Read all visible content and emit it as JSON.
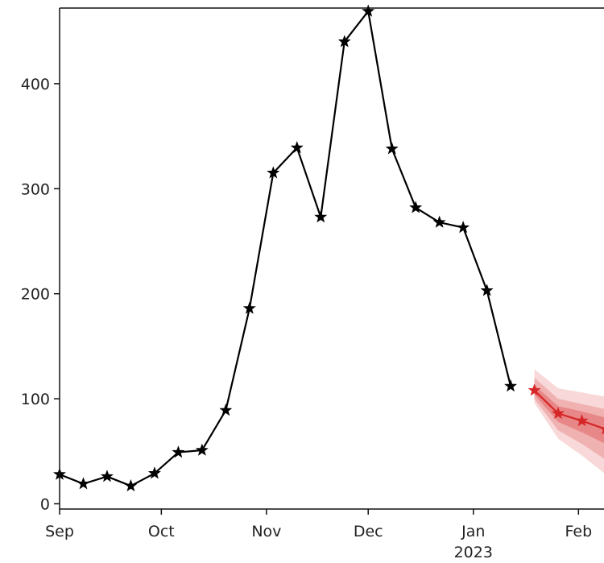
{
  "chart_data": {
    "type": "line",
    "title": "",
    "xlabel": "",
    "ylabel": "",
    "x_axis_type": "date",
    "xlim": [
      "2022-09-01",
      "2023-02-09"
    ],
    "ylim": [
      -5,
      472
    ],
    "grid": false,
    "legend": "none",
    "y_ticks": [
      0,
      100,
      200,
      300,
      400
    ],
    "x_ticks": [
      {
        "date": "2022-09-01",
        "label": "Sep"
      },
      {
        "date": "2022-10-01",
        "label": "Oct"
      },
      {
        "date": "2022-11-01",
        "label": "Nov"
      },
      {
        "date": "2022-12-01",
        "label": "Dec"
      },
      {
        "date": "2023-01-01",
        "label": "Jan",
        "sublabel": "2023"
      },
      {
        "date": "2023-02-01",
        "label": "Feb"
      }
    ],
    "series": [
      {
        "role": "observed",
        "color": "#000000",
        "marker": "star",
        "x": [
          "2022-09-01",
          "2022-09-08",
          "2022-09-15",
          "2022-09-22",
          "2022-09-29",
          "2022-10-06",
          "2022-10-13",
          "2022-10-20",
          "2022-10-27",
          "2022-11-03",
          "2022-11-10",
          "2022-11-17",
          "2022-11-24",
          "2022-12-01",
          "2022-12-08",
          "2022-12-15",
          "2022-12-22",
          "2022-12-29",
          "2023-01-05",
          "2023-01-12"
        ],
        "y": [
          28,
          19,
          26,
          17,
          29,
          49,
          51,
          89,
          186,
          315,
          339,
          273,
          440,
          469,
          338,
          282,
          268,
          263,
          203,
          112
        ]
      },
      {
        "role": "forecast",
        "color": "#d62728",
        "marker": "star",
        "x": [
          "2023-01-19",
          "2023-01-26",
          "2023-02-02",
          "2023-02-09"
        ],
        "y": [
          108,
          86,
          79,
          71
        ],
        "intervals": [
          {
            "lower": [
              96,
              62,
              46,
              28
            ],
            "upper": [
              128,
              110,
              106,
              102
            ],
            "opacity": 0.18
          },
          {
            "lower": [
              100,
              70,
              57,
              42
            ],
            "upper": [
              120,
              100,
              95,
              90
            ],
            "opacity": 0.22
          },
          {
            "lower": [
              104,
              78,
              68,
              57
            ],
            "upper": [
              113,
              93,
              88,
              82
            ],
            "opacity": 0.3
          }
        ]
      }
    ]
  }
}
